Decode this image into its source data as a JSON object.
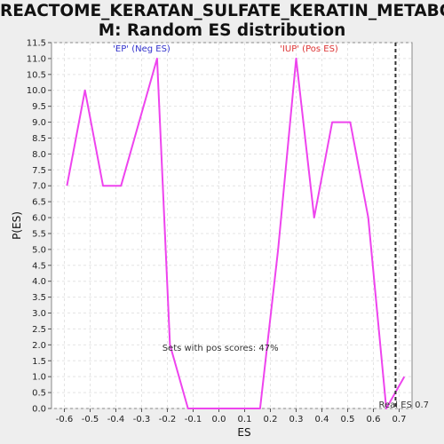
{
  "chart_data": {
    "type": "line",
    "title_lines": [
      "REACTOME_KERATAN_SULFATE_KERATIN_METABOLIS",
      "M: Random ES distribution"
    ],
    "xlabel": "ES",
    "ylabel": "P(ES)",
    "xlim": [
      -0.65,
      0.75
    ],
    "ylim": [
      0,
      11.5
    ],
    "xticks": [
      -0.6,
      -0.5,
      -0.4,
      -0.3,
      -0.2,
      -0.1,
      0.0,
      0.1,
      0.2,
      0.3,
      0.4,
      0.5,
      0.6,
      0.7
    ],
    "xtick_labels": [
      "-0.6",
      "-0.5",
      "-0.4",
      "-0.3",
      "-0.2",
      "-0.1",
      "0.0",
      "0.1",
      "0.2",
      "0.3",
      "0.4",
      "0.5",
      "0.6",
      "0.7"
    ],
    "yticks": [
      0,
      0.5,
      1,
      1.5,
      2,
      2.5,
      3,
      3.5,
      4,
      4.5,
      5,
      5.5,
      6,
      6.5,
      7,
      7.5,
      8,
      8.5,
      9,
      9.5,
      10,
      10.5,
      11,
      11.5
    ],
    "ytick_labels": [
      "0.0",
      "0.5",
      "1.0",
      "1.5",
      "2.0",
      "2.5",
      "3.0",
      "3.5",
      "4.0",
      "4.5",
      "5.0",
      "5.5",
      "6.0",
      "6.5",
      "7.0",
      "7.5",
      "8.0",
      "8.5",
      "9.0",
      "9.5",
      "10.0",
      "10.5",
      "11.0",
      "11.5"
    ],
    "grid": true,
    "series": [
      {
        "color": "#ee44ee",
        "x": [
          -0.59,
          -0.52,
          -0.45,
          -0.38,
          -0.24,
          -0.19,
          -0.12,
          -0.05,
          0.02,
          0.09,
          0.16,
          0.23,
          0.3,
          0.37,
          0.44,
          0.51,
          0.58,
          0.65,
          0.72
        ],
        "y": [
          7,
          10,
          7,
          7,
          11,
          2,
          0,
          0,
          0,
          0,
          0,
          5,
          11,
          6,
          9,
          9,
          6,
          0,
          1
        ]
      }
    ],
    "real_es": {
      "x": 0.686,
      "label": "Real ES 0.7"
    },
    "annotations": {
      "neg": {
        "text": "'EP' (Neg ES)",
        "x": -0.3,
        "y": 11.3,
        "color": "#3333cc"
      },
      "pos": {
        "text": "'IUP' (Pos ES)",
        "x": 0.35,
        "y": 11.3,
        "color": "#dd3333"
      },
      "pos_scores": {
        "text": "Sets with pos scores: 47%",
        "x": -0.22,
        "y": 1.9,
        "color": "#333333"
      }
    }
  }
}
